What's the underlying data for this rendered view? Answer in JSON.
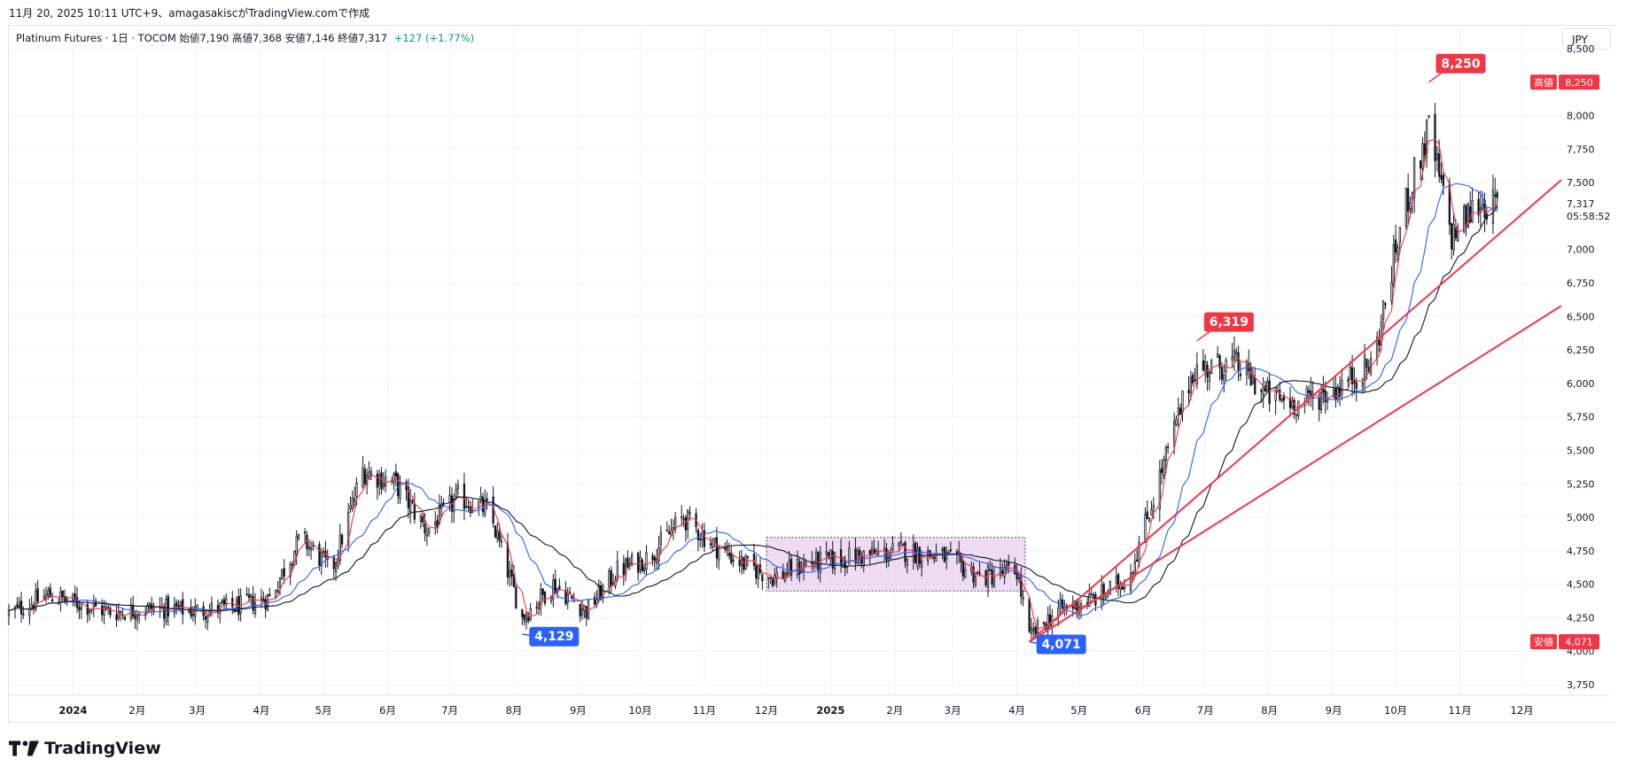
{
  "caption": "11月 20, 2025 10:11 UTC+9、amagasakiscがTradingView.comで作成",
  "legend": {
    "symbol": "Platinum Futures · 1日 · TOCOM",
    "open": "始値7,190",
    "high": "高値7,368",
    "low": "安値7,146",
    "close": "終値7,317",
    "change": "+127 (+1.77%)"
  },
  "currency_label": "JPY",
  "brand": "TradingView",
  "price_axis": {
    "ticks": [
      "8,500",
      "8,000",
      "7,750",
      "7,500",
      "7,000",
      "6,750",
      "6,500",
      "6,250",
      "6,000",
      "5,750",
      "5,500",
      "5,250",
      "5,000",
      "4,750",
      "4,500",
      "4,250",
      "4,000",
      "3,750"
    ],
    "tick_values": [
      8500,
      8000,
      7750,
      7500,
      7000,
      6750,
      6500,
      6250,
      6000,
      5750,
      5500,
      5250,
      5000,
      4750,
      4500,
      4250,
      4000,
      3750
    ],
    "high_badge_label": "高値",
    "high_badge_value": "8,250",
    "low_badge_label": "安値",
    "low_badge_value": "4,071",
    "last_price": "7,317",
    "countdown": "05:58:52"
  },
  "time_axis": {
    "labels": [
      "2024",
      "2月",
      "3月",
      "4月",
      "5月",
      "6月",
      "7月",
      "8月",
      "9月",
      "10月",
      "11月",
      "12月",
      "2025",
      "2月",
      "3月",
      "4月",
      "5月",
      "6月",
      "7月",
      "8月",
      "9月",
      "10月",
      "11月",
      "12月"
    ],
    "bold": [
      true,
      false,
      false,
      false,
      false,
      false,
      false,
      false,
      false,
      false,
      false,
      false,
      true,
      false,
      false,
      false,
      false,
      false,
      false,
      false,
      false,
      false,
      false,
      false
    ]
  },
  "annotations": [
    {
      "text": "8,250",
      "color": "#f23645",
      "date": "2025-10-17",
      "price": 8250
    },
    {
      "text": "6,319",
      "color": "#f23645",
      "date": "2025-06-27",
      "price": 6319
    },
    {
      "text": "4,129",
      "color": "#2962ff",
      "date": "2024-08-05",
      "price": 4129
    },
    {
      "text": "4,071",
      "color": "#2962ff",
      "date": "2025-04-07",
      "price": 4071
    }
  ],
  "colors": {
    "up": "#131722",
    "down": "#131722",
    "ma_fast": "#f23645",
    "ma_mid": "#2962ff",
    "ma_slow": "#131722",
    "trendline": "#f23645",
    "range_box": "#e1bee7"
  },
  "chart_data": {
    "type": "candlestick",
    "title": "Platinum Futures · 1日 · TOCOM",
    "ylim": [
      3600,
      8600
    ],
    "x_range": [
      "2023-12-01",
      "2025-12-20"
    ],
    "grid": true,
    "close_path": [
      [
        "2023-12-01",
        4280
      ],
      [
        "2023-12-20",
        4420
      ],
      [
        "2024-01-05",
        4350
      ],
      [
        "2024-01-20",
        4290
      ],
      [
        "2024-02-10",
        4320
      ],
      [
        "2024-03-01",
        4300
      ],
      [
        "2024-03-20",
        4330
      ],
      [
        "2024-04-05",
        4400
      ],
      [
        "2024-04-20",
        4850
      ],
      [
        "2024-05-05",
        4600
      ],
      [
        "2024-05-20",
        5350
      ],
      [
        "2024-06-05",
        5250
      ],
      [
        "2024-06-20",
        4900
      ],
      [
        "2024-07-05",
        5150
      ],
      [
        "2024-07-20",
        5050
      ],
      [
        "2024-08-05",
        4250
      ],
      [
        "2024-08-20",
        4500
      ],
      [
        "2024-09-05",
        4300
      ],
      [
        "2024-09-20",
        4600
      ],
      [
        "2024-10-05",
        4700
      ],
      [
        "2024-10-22",
        5000
      ],
      [
        "2024-11-05",
        4800
      ],
      [
        "2024-11-20",
        4650
      ],
      [
        "2024-12-05",
        4550
      ],
      [
        "2024-12-20",
        4650
      ],
      [
        "2025-01-10",
        4700
      ],
      [
        "2025-02-05",
        4750
      ],
      [
        "2025-02-25",
        4700
      ],
      [
        "2025-03-15",
        4550
      ],
      [
        "2025-04-01",
        4600
      ],
      [
        "2025-04-07",
        4100
      ],
      [
        "2025-04-20",
        4300
      ],
      [
        "2025-05-10",
        4400
      ],
      [
        "2025-05-25",
        4550
      ],
      [
        "2025-06-10",
        5350
      ],
      [
        "2025-06-25",
        6100
      ],
      [
        "2025-07-15",
        6150
      ],
      [
        "2025-08-01",
        5900
      ],
      [
        "2025-08-15",
        5850
      ],
      [
        "2025-09-01",
        5950
      ],
      [
        "2025-09-20",
        6150
      ],
      [
        "2025-10-05",
        7300
      ],
      [
        "2025-10-17",
        7900
      ],
      [
        "2025-10-28",
        7100
      ],
      [
        "2025-11-10",
        7350
      ],
      [
        "2025-11-19",
        7317
      ]
    ],
    "trendlines": [
      {
        "from": [
          "2025-04-07",
          4071
        ],
        "to": [
          "2025-12-20",
          7520
        ]
      },
      {
        "from": [
          "2025-04-07",
          4071
        ],
        "to": [
          "2025-12-20",
          6580
        ]
      }
    ],
    "range_box": {
      "from": "2024-12-01",
      "to": "2025-04-05",
      "low": 4450,
      "high": 4850
    },
    "series": [
      {
        "name": "",
        "type": "sma_fast",
        "period": 5
      },
      {
        "name": "",
        "type": "sma_mid",
        "period": 20
      },
      {
        "name": "",
        "type": "sma_slow",
        "period": 40
      }
    ]
  }
}
